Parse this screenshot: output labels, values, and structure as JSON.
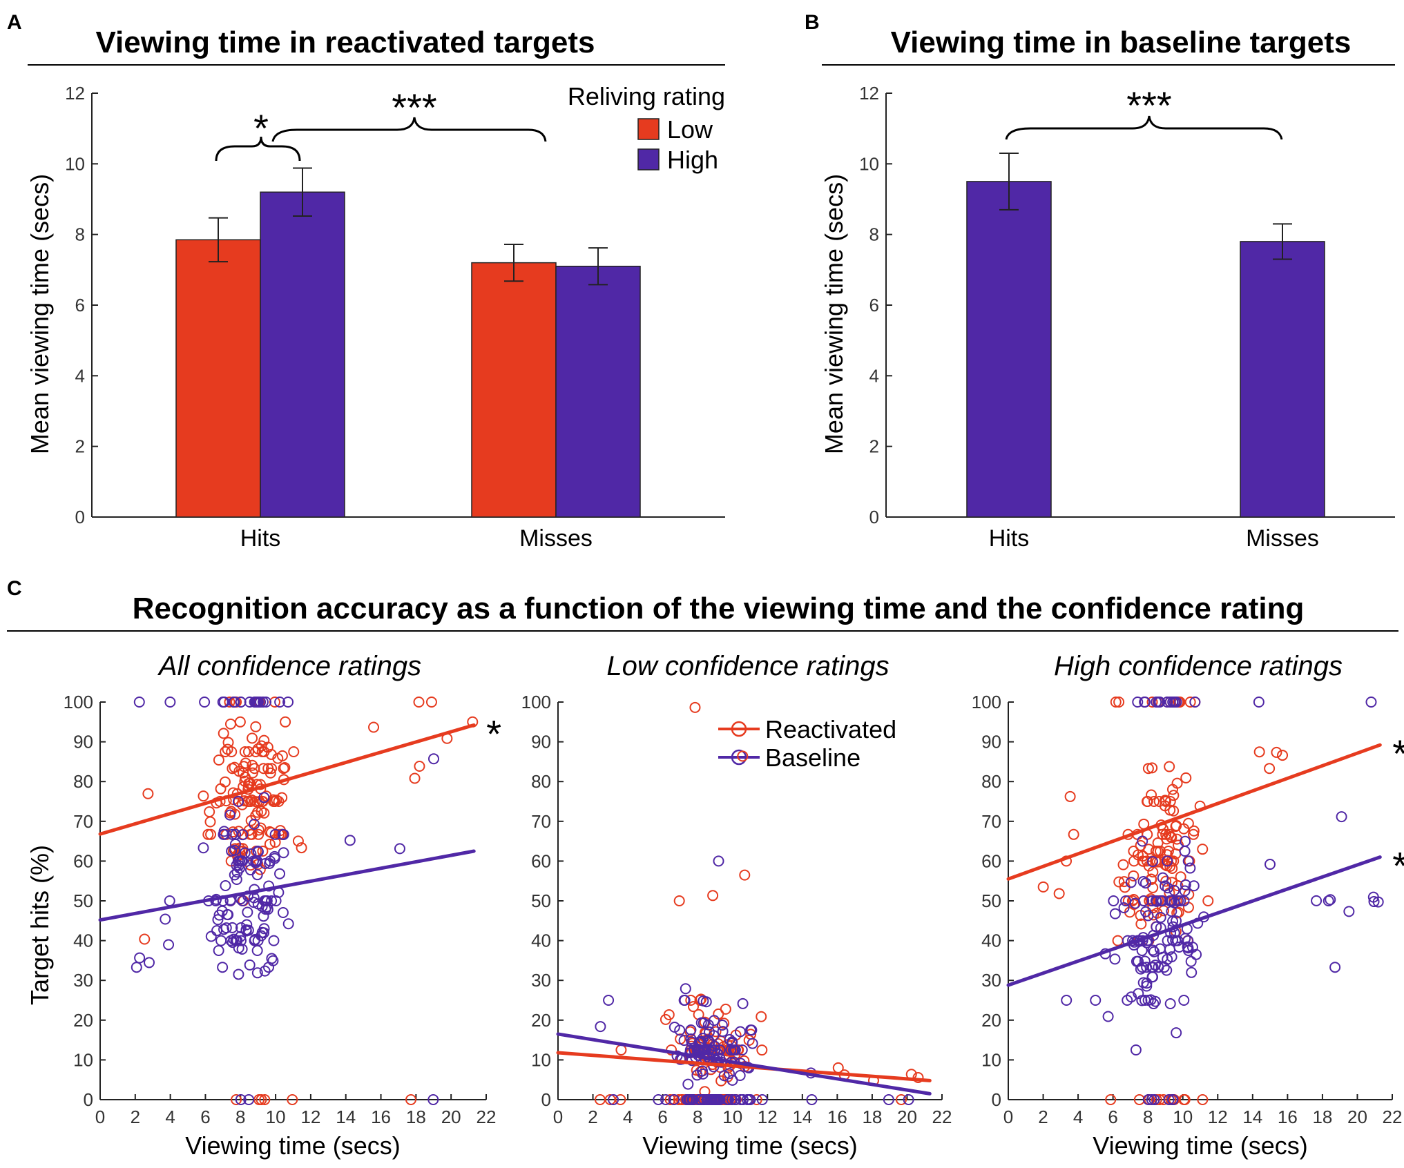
{
  "colors": {
    "low": "#e63b1f",
    "high": "#5028a6",
    "reactivated": "#e63b1f",
    "baseline": "#5028a6",
    "axis": "#222222"
  },
  "chart_data": [
    {
      "id": "A",
      "letter": "A",
      "type": "bar",
      "title": "Viewing time in reactivated targets",
      "ylabel": "Mean viewing time  (secs)",
      "xlabel": "",
      "categories": [
        "Hits",
        "Misses"
      ],
      "ylim": [
        0,
        12
      ],
      "yticks": [
        0,
        2,
        4,
        6,
        8,
        10,
        12
      ],
      "legend_title": "Reliving rating",
      "legend_position": "top-right",
      "series": [
        {
          "name": "Low",
          "color": "#e63b1f",
          "values": [
            7.85,
            7.2
          ],
          "errors": [
            0.62,
            0.52
          ]
        },
        {
          "name": "High",
          "color": "#5028a6",
          "values": [
            9.2,
            7.1
          ],
          "errors": [
            0.68,
            0.52
          ]
        }
      ],
      "annotations": [
        {
          "text": "*",
          "between": "Hits Low vs Hits High"
        },
        {
          "text": "***",
          "between": "Hits vs Misses"
        }
      ]
    },
    {
      "id": "B",
      "letter": "B",
      "type": "bar",
      "title": "Viewing time in baseline targets",
      "ylabel": "Mean viewing time  (secs)",
      "xlabel": "",
      "categories": [
        "Hits",
        "Misses"
      ],
      "ylim": [
        0,
        12
      ],
      "yticks": [
        0,
        2,
        4,
        6,
        8,
        10,
        12
      ],
      "series": [
        {
          "name": "Baseline",
          "color": "#5028a6",
          "values": [
            9.5,
            7.8
          ],
          "errors": [
            0.8,
            0.5
          ]
        }
      ],
      "annotations": [
        {
          "text": "***",
          "between": "Hits vs Misses"
        }
      ]
    },
    {
      "id": "C",
      "letter": "C",
      "type": "scatter",
      "title": "Recognition accuracy as a function of the viewing time and the confidence rating",
      "ylabel": "Target hits (%)",
      "xlabel": "Viewing time (secs)",
      "xlim": [
        0,
        22
      ],
      "ylim": [
        0,
        100
      ],
      "xticks": [
        0,
        2,
        4,
        6,
        8,
        10,
        12,
        14,
        16,
        18,
        20,
        22
      ],
      "yticks": [
        0,
        10,
        20,
        30,
        40,
        50,
        60,
        70,
        80,
        90,
        100
      ],
      "legend": [
        "Reactivated",
        "Baseline"
      ],
      "legend_position": "top-right of middle panel",
      "subplots": [
        {
          "subtitle": "All confidence ratings",
          "fits": [
            {
              "name": "Reactivated",
              "x": [
                0,
                21.3
              ],
              "y": [
                66.8,
                94.2
              ],
              "sig": "*"
            },
            {
              "name": "Baseline",
              "x": [
                0,
                21.3
              ],
              "y": [
                45.2,
                62.5
              ],
              "sig": ""
            }
          ]
        },
        {
          "subtitle": "Low confidence ratings",
          "fits": [
            {
              "name": "Reactivated",
              "x": [
                0,
                21.3
              ],
              "y": [
                11.8,
                4.8
              ],
              "sig": ""
            },
            {
              "name": "Baseline",
              "x": [
                0,
                21.3
              ],
              "y": [
                16.5,
                1.5
              ],
              "sig": ""
            }
          ]
        },
        {
          "subtitle": "High confidence ratings",
          "fits": [
            {
              "name": "Reactivated",
              "x": [
                0,
                21.3
              ],
              "y": [
                55.5,
                89.2
              ],
              "sig": "*"
            },
            {
              "name": "Baseline",
              "x": [
                0,
                21.3
              ],
              "y": [
                28.8,
                61.0
              ],
              "sig": "*"
            }
          ]
        }
      ]
    }
  ]
}
